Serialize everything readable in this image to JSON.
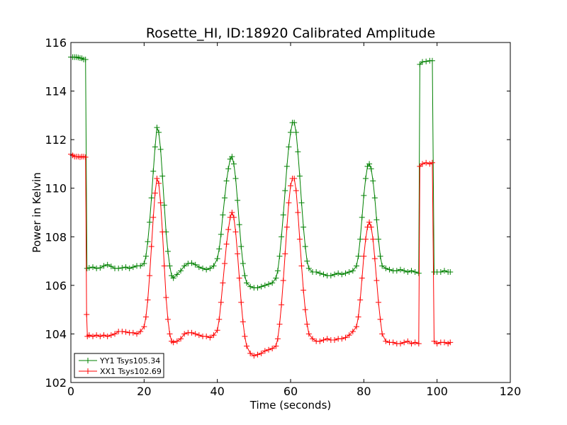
{
  "chart_data": {
    "type": "line",
    "title": "Rosette_HI, ID:18920 Calibrated Amplitude",
    "xlabel": "Time (seconds)",
    "ylabel": "Power in Kelvin",
    "xlim": [
      0,
      120
    ],
    "ylim": [
      102,
      116
    ],
    "x_ticks": [
      "0",
      "20",
      "40",
      "60",
      "80",
      "100",
      "120"
    ],
    "y_ticks": [
      "102",
      "104",
      "106",
      "108",
      "110",
      "112",
      "114",
      "116"
    ],
    "grid": false,
    "legend_position": "lower-left",
    "marker": "plus",
    "series": [
      {
        "name": "YY1 Tsys105.34",
        "color": "#008000",
        "points": [
          [
            0,
            115.4
          ],
          [
            0.5,
            115.4
          ],
          [
            1,
            115.4
          ],
          [
            1.5,
            115.4
          ],
          [
            2,
            115.38
          ],
          [
            2.5,
            115.36
          ],
          [
            3,
            115.35
          ],
          [
            3.5,
            115.3
          ],
          [
            4,
            115.3
          ],
          [
            4.4,
            106.7
          ],
          [
            5,
            106.72
          ],
          [
            6,
            106.75
          ],
          [
            7,
            106.7
          ],
          [
            8,
            106.72
          ],
          [
            9,
            106.8
          ],
          [
            10,
            106.85
          ],
          [
            11,
            106.78
          ],
          [
            12,
            106.7
          ],
          [
            13,
            106.7
          ],
          [
            14,
            106.72
          ],
          [
            15,
            106.75
          ],
          [
            16,
            106.7
          ],
          [
            17,
            106.75
          ],
          [
            18,
            106.8
          ],
          [
            19,
            106.8
          ],
          [
            20,
            106.9
          ],
          [
            20.5,
            107.2
          ],
          [
            21,
            107.8
          ],
          [
            21.5,
            108.6
          ],
          [
            22,
            109.6
          ],
          [
            22.5,
            110.7
          ],
          [
            23,
            111.7
          ],
          [
            23.5,
            112.5
          ],
          [
            24,
            112.3
          ],
          [
            24.5,
            111.6
          ],
          [
            25,
            110.5
          ],
          [
            25.5,
            109.3
          ],
          [
            26,
            108.2
          ],
          [
            26.5,
            107.4
          ],
          [
            27,
            106.8
          ],
          [
            27.5,
            106.4
          ],
          [
            28,
            106.3
          ],
          [
            29,
            106.45
          ],
          [
            30,
            106.6
          ],
          [
            31,
            106.8
          ],
          [
            32,
            106.9
          ],
          [
            33,
            106.92
          ],
          [
            34,
            106.85
          ],
          [
            35,
            106.75
          ],
          [
            36,
            106.7
          ],
          [
            37,
            106.65
          ],
          [
            38,
            106.7
          ],
          [
            39,
            106.8
          ],
          [
            40,
            107.1
          ],
          [
            40.5,
            107.5
          ],
          [
            41,
            108.1
          ],
          [
            41.5,
            108.9
          ],
          [
            42,
            109.6
          ],
          [
            42.5,
            110.3
          ],
          [
            43,
            110.8
          ],
          [
            43.5,
            111.2
          ],
          [
            44,
            111.3
          ],
          [
            44.5,
            111.0
          ],
          [
            45,
            110.4
          ],
          [
            45.5,
            109.5
          ],
          [
            46,
            108.5
          ],
          [
            46.5,
            107.6
          ],
          [
            47,
            106.9
          ],
          [
            47.5,
            106.4
          ],
          [
            48,
            106.1
          ],
          [
            49,
            105.95
          ],
          [
            50,
            105.9
          ],
          [
            51,
            105.9
          ],
          [
            52,
            105.95
          ],
          [
            53,
            106.0
          ],
          [
            54,
            106.05
          ],
          [
            55,
            106.1
          ],
          [
            56,
            106.3
          ],
          [
            56.5,
            106.6
          ],
          [
            57,
            107.2
          ],
          [
            57.5,
            108.0
          ],
          [
            58,
            108.9
          ],
          [
            58.5,
            109.9
          ],
          [
            59,
            110.9
          ],
          [
            59.5,
            111.7
          ],
          [
            60,
            112.3
          ],
          [
            60.5,
            112.7
          ],
          [
            61,
            112.7
          ],
          [
            61.5,
            112.3
          ],
          [
            62,
            111.5
          ],
          [
            62.5,
            110.5
          ],
          [
            63,
            109.4
          ],
          [
            63.5,
            108.4
          ],
          [
            64,
            107.6
          ],
          [
            64.5,
            107.0
          ],
          [
            65,
            106.7
          ],
          [
            66,
            106.55
          ],
          [
            67,
            106.55
          ],
          [
            68,
            106.5
          ],
          [
            69,
            106.45
          ],
          [
            70,
            106.4
          ],
          [
            71,
            106.4
          ],
          [
            72,
            106.45
          ],
          [
            73,
            106.5
          ],
          [
            74,
            106.45
          ],
          [
            75,
            106.5
          ],
          [
            76,
            106.55
          ],
          [
            77,
            106.6
          ],
          [
            78,
            106.8
          ],
          [
            78.5,
            107.2
          ],
          [
            79,
            107.9
          ],
          [
            79.5,
            108.8
          ],
          [
            80,
            109.7
          ],
          [
            80.5,
            110.4
          ],
          [
            81,
            110.9
          ],
          [
            81.5,
            111.0
          ],
          [
            82,
            110.8
          ],
          [
            82.5,
            110.3
          ],
          [
            83,
            109.6
          ],
          [
            83.5,
            108.7
          ],
          [
            84,
            107.9
          ],
          [
            84.5,
            107.2
          ],
          [
            85,
            106.8
          ],
          [
            86,
            106.7
          ],
          [
            87,
            106.65
          ],
          [
            88,
            106.6
          ],
          [
            89,
            106.6
          ],
          [
            90,
            106.65
          ],
          [
            91,
            106.6
          ],
          [
            92,
            106.55
          ],
          [
            93,
            106.6
          ],
          [
            94,
            106.55
          ],
          [
            95,
            106.5
          ],
          [
            95.3,
            115.1
          ],
          [
            96,
            115.2
          ],
          [
            97,
            115.22
          ],
          [
            98,
            115.25
          ],
          [
            98.7,
            115.25
          ],
          [
            99.2,
            106.55
          ],
          [
            100,
            106.55
          ],
          [
            101,
            106.55
          ],
          [
            102,
            106.6
          ],
          [
            103,
            106.55
          ],
          [
            103.6,
            106.55
          ]
        ]
      },
      {
        "name": "XX1 Tsys102.69",
        "color": "#ff0000",
        "points": [
          [
            0,
            111.4
          ],
          [
            0.5,
            111.35
          ],
          [
            1,
            111.3
          ],
          [
            1.5,
            111.3
          ],
          [
            2,
            111.3
          ],
          [
            2.5,
            111.28
          ],
          [
            3,
            111.3
          ],
          [
            3.5,
            111.3
          ],
          [
            4,
            111.28
          ],
          [
            4.3,
            104.8
          ],
          [
            4.5,
            103.9
          ],
          [
            5,
            103.95
          ],
          [
            6,
            103.9
          ],
          [
            7,
            103.95
          ],
          [
            8,
            103.9
          ],
          [
            9,
            103.95
          ],
          [
            10,
            103.9
          ],
          [
            11,
            103.95
          ],
          [
            12,
            104.0
          ],
          [
            13,
            104.1
          ],
          [
            14,
            104.1
          ],
          [
            15,
            104.08
          ],
          [
            16,
            104.05
          ],
          [
            17,
            104.05
          ],
          [
            18,
            104.0
          ],
          [
            19,
            104.1
          ],
          [
            20,
            104.3
          ],
          [
            20.5,
            104.7
          ],
          [
            21,
            105.4
          ],
          [
            21.5,
            106.4
          ],
          [
            22,
            107.6
          ],
          [
            22.5,
            108.8
          ],
          [
            23,
            109.8
          ],
          [
            23.5,
            110.4
          ],
          [
            24,
            110.2
          ],
          [
            24.5,
            109.4
          ],
          [
            25,
            108.2
          ],
          [
            25.5,
            106.8
          ],
          [
            26,
            105.5
          ],
          [
            26.5,
            104.6
          ],
          [
            27,
            104.0
          ],
          [
            27.5,
            103.7
          ],
          [
            28,
            103.65
          ],
          [
            29,
            103.7
          ],
          [
            30,
            103.8
          ],
          [
            31,
            104.0
          ],
          [
            32,
            104.05
          ],
          [
            33,
            104.05
          ],
          [
            34,
            104.0
          ],
          [
            35,
            103.95
          ],
          [
            36,
            103.9
          ],
          [
            37,
            103.9
          ],
          [
            38,
            103.85
          ],
          [
            39,
            103.95
          ],
          [
            40,
            104.15
          ],
          [
            40.5,
            104.6
          ],
          [
            41,
            105.3
          ],
          [
            41.5,
            106.1
          ],
          [
            42,
            106.9
          ],
          [
            42.5,
            107.7
          ],
          [
            43,
            108.3
          ],
          [
            43.5,
            108.8
          ],
          [
            44,
            109.0
          ],
          [
            44.5,
            108.8
          ],
          [
            45,
            108.2
          ],
          [
            45.5,
            107.3
          ],
          [
            46,
            106.3
          ],
          [
            46.5,
            105.3
          ],
          [
            47,
            104.5
          ],
          [
            47.5,
            103.9
          ],
          [
            48,
            103.5
          ],
          [
            49,
            103.2
          ],
          [
            50,
            103.1
          ],
          [
            51,
            103.15
          ],
          [
            52,
            103.2
          ],
          [
            53,
            103.3
          ],
          [
            54,
            103.35
          ],
          [
            55,
            103.4
          ],
          [
            56,
            103.5
          ],
          [
            56.5,
            103.8
          ],
          [
            57,
            104.4
          ],
          [
            57.5,
            105.2
          ],
          [
            58,
            106.2
          ],
          [
            58.5,
            107.3
          ],
          [
            59,
            108.4
          ],
          [
            59.5,
            109.4
          ],
          [
            60,
            110.1
          ],
          [
            60.5,
            110.4
          ],
          [
            61,
            110.4
          ],
          [
            61.5,
            109.9
          ],
          [
            62,
            109.0
          ],
          [
            62.5,
            107.9
          ],
          [
            63,
            106.8
          ],
          [
            63.5,
            105.8
          ],
          [
            64,
            105.0
          ],
          [
            64.5,
            104.4
          ],
          [
            65,
            104.0
          ],
          [
            66,
            103.8
          ],
          [
            67,
            103.7
          ],
          [
            68,
            103.7
          ],
          [
            69,
            103.75
          ],
          [
            70,
            103.8
          ],
          [
            71,
            103.75
          ],
          [
            72,
            103.75
          ],
          [
            73,
            103.8
          ],
          [
            74,
            103.8
          ],
          [
            75,
            103.85
          ],
          [
            76,
            103.95
          ],
          [
            77,
            104.1
          ],
          [
            78,
            104.3
          ],
          [
            78.5,
            104.7
          ],
          [
            79,
            105.4
          ],
          [
            79.5,
            106.3
          ],
          [
            80,
            107.2
          ],
          [
            80.5,
            107.9
          ],
          [
            81,
            108.4
          ],
          [
            81.5,
            108.6
          ],
          [
            82,
            108.4
          ],
          [
            82.5,
            107.9
          ],
          [
            83,
            107.1
          ],
          [
            83.5,
            106.2
          ],
          [
            84,
            105.3
          ],
          [
            84.5,
            104.6
          ],
          [
            85,
            104.0
          ],
          [
            86,
            103.7
          ],
          [
            87,
            103.65
          ],
          [
            88,
            103.65
          ],
          [
            89,
            103.6
          ],
          [
            90,
            103.6
          ],
          [
            91,
            103.65
          ],
          [
            92,
            103.7
          ],
          [
            93,
            103.6
          ],
          [
            94,
            103.65
          ],
          [
            95,
            103.6
          ],
          [
            95.3,
            110.9
          ],
          [
            96,
            111.0
          ],
          [
            97,
            111.05
          ],
          [
            98,
            111.0
          ],
          [
            98.7,
            111.05
          ],
          [
            99.2,
            103.7
          ],
          [
            100,
            103.6
          ],
          [
            101,
            103.65
          ],
          [
            102,
            103.65
          ],
          [
            103,
            103.6
          ],
          [
            103.6,
            103.65
          ]
        ]
      }
    ]
  }
}
